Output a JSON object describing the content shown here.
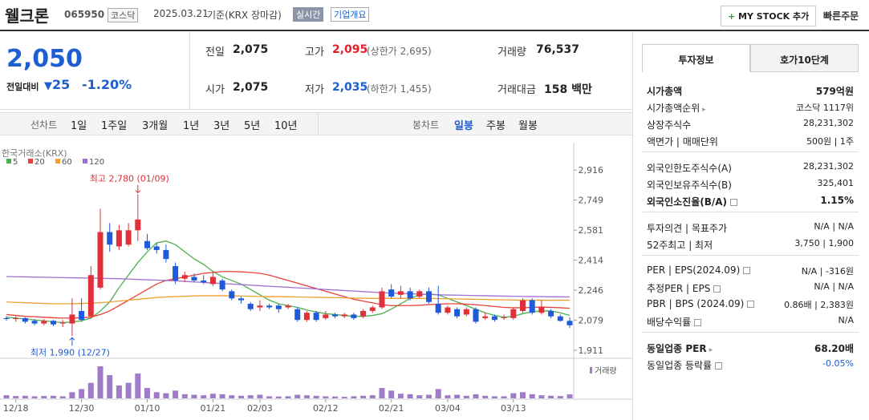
{
  "header": {
    "name": "웰크론",
    "code": "065950",
    "market": "코스닥",
    "date": "2025.03.21",
    "basis": "기준(KRX 장마감)",
    "realtime": "실시간",
    "overview": "기업개요",
    "mystock": "MY STOCK 추가",
    "quick_order": "빠른주문"
  },
  "price": {
    "current": "2,050",
    "change_label": "전일대비",
    "change": "25",
    "rate": "-1.20%",
    "color": "#1d5fd1"
  },
  "quote": [
    {
      "label": "전일",
      "value": "2,075"
    },
    {
      "label": "고가",
      "value": "2,095",
      "extra": "(상한가 2,695)",
      "color": "#e0202a"
    },
    {
      "label": "거래량",
      "value": "76,537"
    },
    {
      "label": "시가",
      "value": "2,075"
    },
    {
      "label": "저가",
      "value": "2,035",
      "extra": "(하한가 1,455)",
      "color": "#1d5fd1"
    },
    {
      "label": "거래대금",
      "value": "158 백만"
    }
  ],
  "chart_tabs": {
    "line_label": "선차트",
    "line_periods": [
      "1일",
      "1주일",
      "3개월",
      "1년",
      "3년",
      "5년",
      "10년"
    ],
    "candle_label": "봉차트",
    "candle_periods": [
      "일봉",
      "주봉",
      "월봉"
    ],
    "active": 0
  },
  "chart_data": {
    "type": "candlestick",
    "source": "한국거래소(KRX)",
    "categories": [
      null,
      "12/18",
      null,
      null,
      null,
      null,
      null,
      null,
      "12/30",
      null,
      null,
      null,
      null,
      null,
      null,
      "01/10",
      null,
      null,
      null,
      null,
      null,
      null,
      "01/21",
      null,
      null,
      null,
      null,
      "02/03",
      null,
      null,
      null,
      null,
      null,
      null,
      "02/12",
      null,
      null,
      null,
      null,
      null,
      null,
      "02/21",
      null,
      null,
      null,
      null,
      null,
      "03/04",
      null,
      null,
      null,
      null,
      null,
      null,
      "03/13",
      null,
      null,
      null,
      null,
      null,
      null
    ],
    "open": [
      2090,
      2085,
      2090,
      2075,
      2060,
      2075,
      2060,
      2060,
      2130,
      2100,
      2260,
      2570,
      2490,
      2500,
      2580,
      2520,
      2490,
      2470,
      2380,
      2310,
      2320,
      2300,
      2280,
      2300,
      2240,
      2200,
      2170,
      2150,
      2160,
      2160,
      2150,
      2140,
      2080,
      2120,
      2090,
      2110,
      2100,
      2110,
      2100,
      2130,
      2150,
      2250,
      2220,
      2240,
      2210,
      2240,
      2170,
      2120,
      2140,
      2110,
      2140,
      2090,
      2100,
      2090,
      2090,
      2130,
      2190,
      2120,
      2130,
      2100,
      2075
    ],
    "high": [
      2100,
      2100,
      2095,
      2085,
      2085,
      2080,
      2080,
      2200,
      2200,
      2380,
      2700,
      2620,
      2610,
      2620,
      2780,
      2560,
      2510,
      2500,
      2400,
      2350,
      2340,
      2330,
      2350,
      2310,
      2250,
      2210,
      2180,
      2190,
      2170,
      2170,
      2170,
      2150,
      2130,
      2130,
      2130,
      2120,
      2120,
      2120,
      2140,
      2160,
      2260,
      2280,
      2270,
      2260,
      2250,
      2260,
      2270,
      2160,
      2150,
      2150,
      2150,
      2120,
      2110,
      2110,
      2150,
      2200,
      2200,
      2190,
      2140,
      2110,
      2095
    ],
    "low": [
      2075,
      2070,
      2060,
      2050,
      2050,
      2045,
      2040,
      1990,
      2070,
      2090,
      2250,
      2460,
      2470,
      2490,
      2520,
      2470,
      2450,
      2400,
      2280,
      2290,
      2290,
      2280,
      2270,
      2240,
      2190,
      2170,
      2130,
      2130,
      2140,
      2120,
      2140,
      2070,
      2070,
      2070,
      2080,
      2090,
      2090,
      2080,
      2090,
      2120,
      2140,
      2200,
      2200,
      2190,
      2200,
      2170,
      2110,
      2110,
      2090,
      2100,
      2060,
      2080,
      2070,
      2080,
      2080,
      2120,
      2110,
      2110,
      2090,
      2070,
      2035
    ],
    "close": [
      2085,
      2090,
      2070,
      2060,
      2075,
      2055,
      2065,
      2110,
      2080,
      2330,
      2570,
      2500,
      2580,
      2580,
      2640,
      2480,
      2470,
      2420,
      2300,
      2330,
      2300,
      2290,
      2320,
      2250,
      2200,
      2190,
      2140,
      2160,
      2150,
      2140,
      2160,
      2080,
      2120,
      2080,
      2110,
      2100,
      2110,
      2090,
      2130,
      2150,
      2240,
      2210,
      2240,
      2200,
      2240,
      2180,
      2120,
      2150,
      2100,
      2140,
      2070,
      2100,
      2080,
      2095,
      2140,
      2190,
      2120,
      2150,
      2100,
      2075,
      2050
    ],
    "up_color": "#e0303a",
    "down_color": "#1f5bd8",
    "series": [
      {
        "name": "5",
        "color": "#4caf50",
        "values": [
          2095,
          2090,
          2085,
          2080,
          2075,
          2070,
          2065,
          2068,
          2075,
          2090,
          2130,
          2180,
          2260,
          2330,
          2400,
          2460,
          2510,
          2520,
          2500,
          2460,
          2420,
          2390,
          2350,
          2320,
          2300,
          2280,
          2250,
          2220,
          2190,
          2170,
          2160,
          2150,
          2135,
          2125,
          2115,
          2110,
          2105,
          2100,
          2100,
          2105,
          2115,
          2140,
          2170,
          2200,
          2220,
          2225,
          2220,
          2200,
          2180,
          2160,
          2140,
          2120,
          2105,
          2095,
          2100,
          2115,
          2125,
          2130,
          2130,
          2120,
          2105
        ]
      },
      {
        "name": "20",
        "color": "#e8403a",
        "values": [
          2110,
          2105,
          2100,
          2098,
          2095,
          2092,
          2090,
          2090,
          2092,
          2095,
          2110,
          2130,
          2160,
          2190,
          2220,
          2250,
          2280,
          2300,
          2310,
          2320,
          2330,
          2340,
          2345,
          2350,
          2350,
          2348,
          2345,
          2340,
          2330,
          2315,
          2300,
          2285,
          2270,
          2255,
          2240,
          2225,
          2210,
          2195,
          2185,
          2175,
          2165,
          2160,
          2160,
          2160,
          2162,
          2165,
          2168,
          2170,
          2170,
          2168,
          2165,
          2160,
          2155,
          2150,
          2148,
          2148,
          2150,
          2152,
          2150,
          2148,
          2145
        ]
      },
      {
        "name": "60",
        "color": "#f0a030",
        "values": [
          2180,
          2178,
          2176,
          2174,
          2172,
          2170,
          2170,
          2170,
          2172,
          2174,
          2176,
          2180,
          2185,
          2190,
          2195,
          2200,
          2205,
          2208,
          2210,
          2212,
          2214,
          2215,
          2215,
          2215,
          2214,
          2213,
          2212,
          2211,
          2210,
          2210,
          2209,
          2208,
          2207,
          2206,
          2205,
          2204,
          2203,
          2202,
          2201,
          2200,
          2200,
          2200,
          2200,
          2200,
          2200,
          2200,
          2199,
          2198,
          2197,
          2196,
          2195,
          2194,
          2193,
          2192,
          2191,
          2190,
          2190,
          2190,
          2190,
          2190,
          2190
        ]
      },
      {
        "name": "120",
        "color": "#a070d0",
        "values": [
          2322,
          2321,
          2320,
          2319,
          2318,
          2317,
          2316,
          2315,
          2314,
          2313,
          2312,
          2311,
          2310,
          2308,
          2306,
          2304,
          2302,
          2300,
          2298,
          2295,
          2292,
          2289,
          2286,
          2283,
          2280,
          2277,
          2274,
          2271,
          2268,
          2265,
          2262,
          2259,
          2256,
          2253,
          2250,
          2247,
          2244,
          2241,
          2238,
          2235,
          2232,
          2230,
          2228,
          2226,
          2224,
          2222,
          2220,
          2219,
          2218,
          2217,
          2216,
          2215,
          2214,
          2213,
          2212,
          2211,
          2210,
          2210,
          2209,
          2209,
          2208
        ]
      }
    ],
    "volume": [
      60000,
      45000,
      50000,
      40000,
      45000,
      50000,
      40000,
      120000,
      180000,
      300000,
      620000,
      450000,
      250000,
      300000,
      480000,
      200000,
      120000,
      100000,
      150000,
      80000,
      70000,
      60000,
      90000,
      80000,
      60000,
      50000,
      60000,
      70000,
      40000,
      35000,
      40000,
      70000,
      60000,
      50000,
      40000,
      35000,
      30000,
      40000,
      50000,
      60000,
      200000,
      150000,
      90000,
      80000,
      60000,
      70000,
      180000,
      60000,
      70000,
      50000,
      80000,
      50000,
      40000,
      40000,
      100000,
      120000,
      80000,
      60000,
      50000,
      45000,
      76537
    ],
    "volume_label": "거래량",
    "volume_color": "#a07cc8",
    "ylim": [
      1875,
      3015
    ],
    "yticks": [
      {
        "value": 2916,
        "label": "2,916"
      },
      {
        "value": 2749,
        "label": "2,749"
      },
      {
        "value": 2581,
        "label": "2,581"
      },
      {
        "value": 2414,
        "label": "2,414"
      },
      {
        "value": 2246,
        "label": "2,246"
      },
      {
        "value": 2079,
        "label": "2,079"
      },
      {
        "value": 1911,
        "label": "1,911"
      }
    ],
    "annotations": [
      {
        "text": "최고 2,780 (01/09)"
      },
      {
        "text": "최저 1,990 (12/27)"
      }
    ],
    "grid": false
  },
  "sidebar": {
    "tabs": [
      "투자정보",
      "호가10단계"
    ],
    "groups": [
      [
        {
          "label": "시가총액",
          "value": "579억원",
          "bold": true
        },
        {
          "label": "시가총액순위",
          "value": "코스닥 1117위",
          "arrow": true
        },
        {
          "label": "상장주식수",
          "value": "28,231,302"
        },
        {
          "label": "액면가 | 매매단위",
          "value": "500원 | 1주"
        }
      ],
      [
        {
          "label": "외국인한도주식수(A)",
          "value": "28,231,302"
        },
        {
          "label": "외국인보유주식수(B)",
          "value": "325,401"
        },
        {
          "label": "외국인소진율(B/A)",
          "value": "1.15%",
          "bold": true,
          "help": true
        }
      ],
      [
        {
          "label": "투자의견 | 목표주가",
          "value": "N/A | N/A"
        },
        {
          "label": "52주최고 | 최저",
          "value": "3,750 | 1,900"
        }
      ],
      [
        {
          "label": "PER | EPS(2024.09)",
          "value": "N/A | -316원",
          "help": true
        },
        {
          "label": "추정PER | EPS",
          "value": "N/A | N/A",
          "help": true
        },
        {
          "label": "PBR | BPS (2024.09)",
          "value": "0.86배 | 2,383원",
          "help": true
        },
        {
          "label": "배당수익률",
          "value": "N/A",
          "help": true
        }
      ],
      [
        {
          "label": "동일업종 PER",
          "value": "68.20배",
          "bold": true,
          "arrow": true
        },
        {
          "label": "동일업종 등락률",
          "value": "-0.05%",
          "color": "#1d5fd1",
          "help": true
        }
      ]
    ]
  }
}
